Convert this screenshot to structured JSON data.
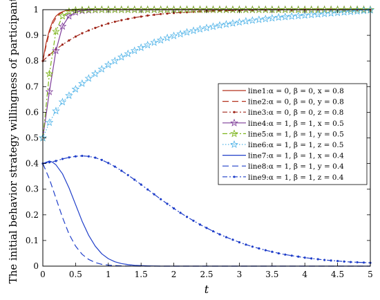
{
  "chart_data": {
    "type": "line",
    "title": "",
    "xlabel": "t",
    "ylabel": "The initial behavior strategy willingness of participants",
    "xlim": [
      0,
      5
    ],
    "ylim": [
      0,
      1
    ],
    "xticks": [
      "0",
      "0.5",
      "1",
      "1.5",
      "2",
      "2.5",
      "3",
      "3.5",
      "4",
      "4.5",
      "5"
    ],
    "yticks": [
      "0",
      "0.1",
      "0.2",
      "0.3",
      "0.4",
      "0.5",
      "0.6",
      "0.7",
      "0.8",
      "0.9",
      "1"
    ],
    "legend_position": "right",
    "series": [
      {
        "name": "line1:α = 0, β = 0, x = 0.8",
        "color": "#b5301c",
        "dash": "solid",
        "marker": "none",
        "x": [
          0,
          0.05,
          0.1,
          0.15,
          0.2,
          0.25,
          0.3,
          0.35,
          0.4,
          0.5,
          0.6,
          0.8,
          1.0,
          5.0
        ],
        "y": [
          0.8,
          0.87,
          0.92,
          0.955,
          0.975,
          0.986,
          0.992,
          0.996,
          0.998,
          0.999,
          1.0,
          1.0,
          1.0,
          1.0
        ]
      },
      {
        "name": "line2:α = 0, β = 0, y = 0.8",
        "color": "#b5301c",
        "dash": "long",
        "marker": "none",
        "x": [
          0,
          0.05,
          0.1,
          0.15,
          0.2,
          0.25,
          0.3,
          0.35,
          0.4,
          0.5,
          0.6,
          0.8,
          1.0,
          5.0
        ],
        "y": [
          0.8,
          0.86,
          0.91,
          0.945,
          0.968,
          0.982,
          0.99,
          0.995,
          0.997,
          0.999,
          1.0,
          1.0,
          1.0,
          1.0
        ]
      },
      {
        "name": "line3:α = 0, β = 0, z = 0.8",
        "color": "#a0261a",
        "dash": "dashdot",
        "marker": "dot",
        "x": [
          0,
          0.1,
          0.2,
          0.3,
          0.4,
          0.5,
          0.6,
          0.7,
          0.8,
          0.9,
          1.0,
          1.1,
          1.2,
          1.3,
          1.4,
          1.5,
          1.6,
          1.7,
          1.8,
          1.9,
          2.0,
          2.1,
          2.2,
          2.3,
          2.4,
          2.5,
          2.6,
          2.7,
          2.8,
          2.9,
          3.0,
          3.2,
          3.4,
          3.6,
          3.8,
          4.0,
          4.2,
          4.4,
          4.6,
          4.8,
          5.0
        ],
        "y": [
          0.8,
          0.824,
          0.845,
          0.864,
          0.88,
          0.895,
          0.908,
          0.919,
          0.929,
          0.938,
          0.946,
          0.953,
          0.959,
          0.964,
          0.969,
          0.973,
          0.977,
          0.98,
          0.983,
          0.985,
          0.987,
          0.989,
          0.99,
          0.992,
          0.993,
          0.994,
          0.995,
          0.996,
          0.996,
          0.997,
          0.997,
          0.998,
          0.999,
          0.999,
          0.999,
          1.0,
          1.0,
          1.0,
          1.0,
          1.0,
          1.0
        ]
      },
      {
        "name": "line4:α = 1, β = 1, x = 0.5",
        "color": "#7d3c98",
        "dash": "solid",
        "marker": "star",
        "x": [
          0,
          0.1,
          0.2,
          0.3,
          0.4,
          0.5,
          0.6,
          0.7,
          0.8,
          0.9,
          1.0,
          1.1,
          1.2,
          1.3,
          1.4,
          1.5,
          1.6,
          1.7,
          1.8,
          1.9,
          2.0,
          2.1,
          2.2,
          2.3,
          2.4,
          2.5,
          2.6,
          2.7,
          2.8,
          2.9,
          3.0,
          3.1,
          3.2,
          3.3,
          3.4,
          3.5,
          3.6,
          3.7,
          3.8,
          3.9,
          4.0,
          4.1,
          4.2,
          4.3,
          4.4,
          4.5,
          4.6,
          4.7,
          4.8,
          4.9,
          5.0
        ],
        "y": [
          0.5,
          0.68,
          0.84,
          0.935,
          0.975,
          0.99,
          0.996,
          0.998,
          0.999,
          1.0,
          1.0,
          1.0,
          1.0,
          1.0,
          1.0,
          1.0,
          1.0,
          1.0,
          1.0,
          1.0,
          1.0,
          1.0,
          1.0,
          1.0,
          1.0,
          1.0,
          1.0,
          1.0,
          1.0,
          1.0,
          1.0,
          1.0,
          1.0,
          1.0,
          1.0,
          1.0,
          1.0,
          1.0,
          1.0,
          1.0,
          1.0,
          1.0,
          1.0,
          1.0,
          1.0,
          1.0,
          1.0,
          1.0,
          1.0,
          1.0,
          1.0
        ]
      },
      {
        "name": "line5:α = 1, β = 1, y = 0.5",
        "color": "#7ab317",
        "dash": "dashdot",
        "marker": "star",
        "x": [
          0,
          0.1,
          0.2,
          0.3,
          0.4,
          0.5,
          0.6,
          0.7,
          0.8,
          0.9,
          1.0,
          1.1,
          1.2,
          1.3,
          1.4,
          1.5,
          1.6,
          1.7,
          1.8,
          1.9,
          2.0,
          2.1,
          2.2,
          2.3,
          2.4,
          2.5,
          2.6,
          2.7,
          2.8,
          2.9,
          3.0,
          3.1,
          3.2,
          3.3,
          3.4,
          3.5,
          3.6,
          3.7,
          3.8,
          3.9,
          4.0,
          4.1,
          4.2,
          4.3,
          4.4,
          4.5,
          4.6,
          4.7,
          4.8,
          4.9,
          5.0
        ],
        "y": [
          0.5,
          0.75,
          0.915,
          0.975,
          0.993,
          0.998,
          0.999,
          1.0,
          1.0,
          1.0,
          1.0,
          1.0,
          1.0,
          1.0,
          1.0,
          1.0,
          1.0,
          1.0,
          1.0,
          1.0,
          1.0,
          1.0,
          1.0,
          1.0,
          1.0,
          1.0,
          1.0,
          1.0,
          1.0,
          1.0,
          1.0,
          1.0,
          1.0,
          1.0,
          1.0,
          1.0,
          1.0,
          1.0,
          1.0,
          1.0,
          1.0,
          1.0,
          1.0,
          1.0,
          1.0,
          1.0,
          1.0,
          1.0,
          1.0,
          1.0,
          1.0
        ]
      },
      {
        "name": "line6:α = 1, β = 1, z = 0.5",
        "color": "#4fb3e8",
        "dash": "dotted",
        "marker": "star",
        "x": [
          0,
          0.1,
          0.2,
          0.3,
          0.4,
          0.5,
          0.6,
          0.7,
          0.8,
          0.9,
          1.0,
          1.1,
          1.2,
          1.3,
          1.4,
          1.5,
          1.6,
          1.7,
          1.8,
          1.9,
          2.0,
          2.1,
          2.2,
          2.3,
          2.4,
          2.5,
          2.6,
          2.7,
          2.8,
          2.9,
          3.0,
          3.1,
          3.2,
          3.3,
          3.4,
          3.5,
          3.6,
          3.7,
          3.8,
          3.9,
          4.0,
          4.1,
          4.2,
          4.3,
          4.4,
          4.5,
          4.6,
          4.7,
          4.8,
          4.9,
          5.0
        ],
        "y": [
          0.5,
          0.56,
          0.605,
          0.64,
          0.665,
          0.69,
          0.712,
          0.732,
          0.75,
          0.768,
          0.785,
          0.8,
          0.815,
          0.828,
          0.84,
          0.852,
          0.862,
          0.872,
          0.881,
          0.89,
          0.898,
          0.905,
          0.912,
          0.918,
          0.924,
          0.929,
          0.934,
          0.939,
          0.943,
          0.947,
          0.951,
          0.955,
          0.958,
          0.961,
          0.964,
          0.967,
          0.97,
          0.972,
          0.974,
          0.976,
          0.978,
          0.98,
          0.982,
          0.984,
          0.986,
          0.988,
          0.99,
          0.992,
          0.994,
          0.996,
          0.998
        ]
      },
      {
        "name": "line7:α = 1, β = 1, x = 0.4",
        "color": "#1f3ec9",
        "dash": "solid",
        "marker": "none",
        "x": [
          0,
          0.1,
          0.15,
          0.2,
          0.3,
          0.4,
          0.5,
          0.6,
          0.7,
          0.8,
          0.9,
          1.0,
          1.1,
          1.2,
          1.3,
          1.4,
          1.5,
          1.6,
          1.8,
          2.0,
          2.5,
          3.0,
          5.0
        ],
        "y": [
          0.4,
          0.41,
          0.405,
          0.395,
          0.36,
          0.305,
          0.24,
          0.175,
          0.12,
          0.078,
          0.048,
          0.029,
          0.017,
          0.01,
          0.006,
          0.003,
          0.002,
          0.001,
          0.0,
          0.0,
          0.0,
          0.0,
          0.0
        ]
      },
      {
        "name": "line8:α = 1, β = 1, y = 0.4",
        "color": "#1f3ec9",
        "dash": "long",
        "marker": "none",
        "x": [
          0,
          0.1,
          0.2,
          0.3,
          0.4,
          0.5,
          0.6,
          0.7,
          0.8,
          0.9,
          1.0,
          1.1,
          1.2,
          1.5,
          2.0,
          5.0
        ],
        "y": [
          0.4,
          0.34,
          0.265,
          0.19,
          0.125,
          0.078,
          0.046,
          0.026,
          0.014,
          0.007,
          0.004,
          0.002,
          0.001,
          0.0,
          0.0,
          0.0
        ]
      },
      {
        "name": "line9:α = 1, β = 1, z = 0.4",
        "color": "#1f3ec9",
        "dash": "dashdot",
        "marker": "dot",
        "x": [
          0,
          0.1,
          0.2,
          0.3,
          0.4,
          0.5,
          0.6,
          0.7,
          0.8,
          0.9,
          1.0,
          1.1,
          1.2,
          1.3,
          1.4,
          1.5,
          1.6,
          1.7,
          1.8,
          1.9,
          2.0,
          2.1,
          2.2,
          2.3,
          2.4,
          2.5,
          2.6,
          2.7,
          2.8,
          2.9,
          3.0,
          3.1,
          3.2,
          3.3,
          3.4,
          3.5,
          3.6,
          3.7,
          3.8,
          3.9,
          4.0,
          4.1,
          4.2,
          4.3,
          4.4,
          4.5,
          4.6,
          4.7,
          4.8,
          4.9,
          5.0
        ],
        "y": [
          0.4,
          0.405,
          0.41,
          0.418,
          0.424,
          0.428,
          0.43,
          0.428,
          0.423,
          0.414,
          0.402,
          0.388,
          0.372,
          0.355,
          0.337,
          0.318,
          0.299,
          0.28,
          0.261,
          0.243,
          0.225,
          0.208,
          0.192,
          0.177,
          0.162,
          0.149,
          0.136,
          0.124,
          0.113,
          0.103,
          0.093,
          0.084,
          0.076,
          0.069,
          0.062,
          0.056,
          0.05,
          0.045,
          0.041,
          0.037,
          0.033,
          0.03,
          0.027,
          0.024,
          0.022,
          0.02,
          0.018,
          0.016,
          0.015,
          0.014,
          0.013
        ]
      }
    ]
  }
}
